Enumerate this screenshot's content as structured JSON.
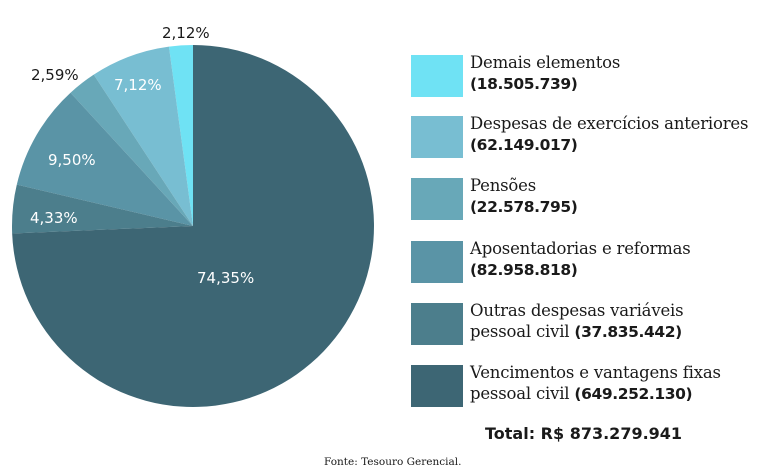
{
  "chart_data": {
    "type": "pie",
    "title": "",
    "start_angle": "12 o'clock",
    "slices": [
      {
        "label": "Demais elementos",
        "value": 18505739,
        "value_text": "18.505.739",
        "percent": 2.12,
        "percent_text": "2,12%",
        "color": "#6fe2f4"
      },
      {
        "label": "Despesas de exercícios anteriores",
        "value": 62149017,
        "value_text": "62.149.017",
        "percent": 7.12,
        "percent_text": "7,12%",
        "color": "#78bed2"
      },
      {
        "label": "Pensões",
        "value": 22578795,
        "value_text": "22.578.795",
        "percent": 2.59,
        "percent_text": "2,59%",
        "color": "#68a8b8"
      },
      {
        "label": "Aposentadorias e reformas",
        "value": 82958818,
        "value_text": "82.958.818",
        "percent": 9.5,
        "percent_text": "9,50%",
        "color": "#5a94a6"
      },
      {
        "label": "Outras despesas variáveis pessoal civil",
        "value": 37835442,
        "value_text": "37.835.442",
        "percent": 4.33,
        "percent_text": "4,33%",
        "color": "#4c7e8c"
      },
      {
        "label": "Vencimentos e vantagens fixas pessoal civil",
        "value": 649252130,
        "value_text": "649.252.130",
        "percent": 74.35,
        "percent_text": "74,35%",
        "color": "#3d6674"
      }
    ],
    "legend_position": "right",
    "total_text": "Total: R$ 873.279.941",
    "source_text": "Fonte:  Tesouro Gerencial."
  },
  "legend": {
    "items": [
      {
        "line1": "Demais elementos",
        "line2_prefix": "",
        "value": "(18.505.739)"
      },
      {
        "line1": "Despesas de exercícios anteriores",
        "line2_prefix": "",
        "value": "(62.149.017)"
      },
      {
        "line1": "Pensões",
        "line2_prefix": "",
        "value": "(22.578.795)"
      },
      {
        "line1": "Aposentadorias e reformas",
        "line2_prefix": "",
        "value": "(82.958.818)"
      },
      {
        "line1": "Outras despesas variáveis",
        "line2_prefix": "pessoal civil ",
        "value": "(37.835.442)"
      },
      {
        "line1": "Vencimentos e vantagens fixas",
        "line2_prefix": "pessoal civil ",
        "value": "(649.252.130)"
      }
    ]
  },
  "labels": {
    "demais": "2,12%",
    "despesas": "7,12%",
    "pensoes": "2,59%",
    "aposentadorias": "9,50%",
    "outras": "4,33%",
    "vencimentos": "74,35%"
  },
  "footer": {
    "total": "Total: R$ 873.279.941",
    "source": "Fonte:  Tesouro Gerencial."
  }
}
